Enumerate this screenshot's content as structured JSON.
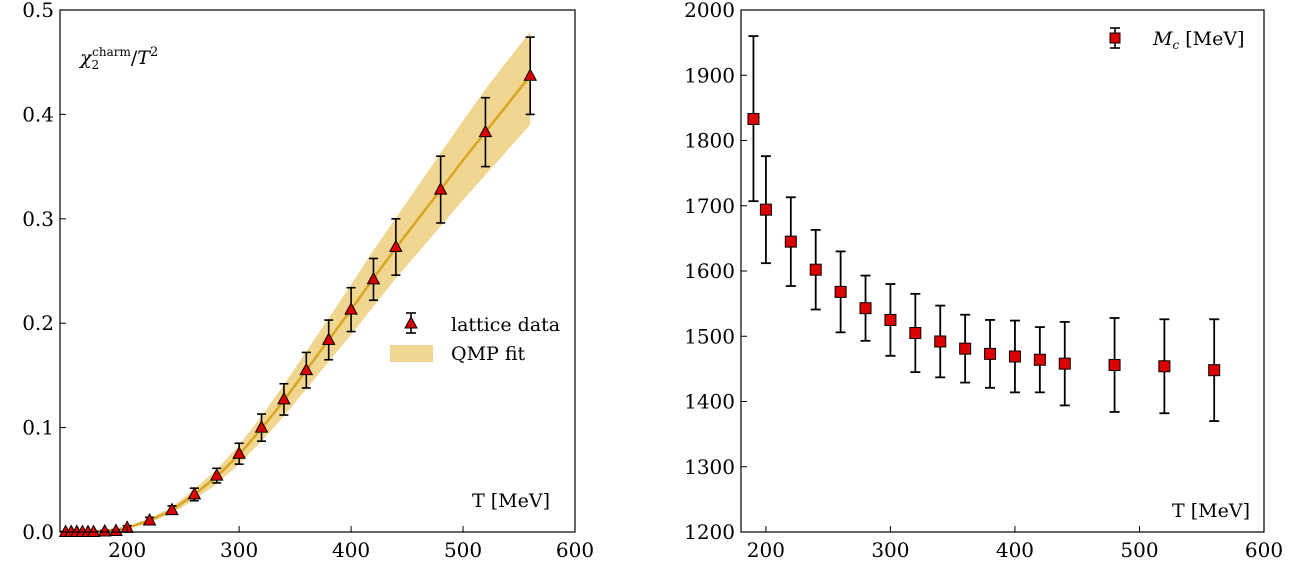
{
  "colors": {
    "marker_fill": "#dd0000",
    "marker_edge": "#000000",
    "errorbar": "#000000",
    "fit_line": "#daa520",
    "fit_band": "#f0d690"
  },
  "chart_data": [
    {
      "type": "scatter",
      "title": "",
      "annotation": "χ₂^charm/T²",
      "annotation_parts": {
        "chi": "χ",
        "sub": "2",
        "sup": "charm",
        "rest": "/",
        "T": "T",
        "Tsup": "2"
      },
      "xlabel": "T [MeV]",
      "xlim": [
        140,
        600
      ],
      "ylim": [
        0.0,
        0.5
      ],
      "xticks": [
        200,
        300,
        400,
        500,
        600
      ],
      "yticks": [
        0.0,
        0.1,
        0.2,
        0.3,
        0.4,
        0.5
      ],
      "xtick_labels": [
        "200",
        "300",
        "400",
        "500",
        "600"
      ],
      "ytick_labels": [
        "0.0",
        "0.1",
        "0.2",
        "0.3",
        "0.4",
        "0.5"
      ],
      "legend_position": "center-right",
      "legend": [
        {
          "label": "lattice data",
          "marker": "triangle"
        },
        {
          "label": "QMP fit",
          "marker": "band"
        }
      ],
      "series": [
        {
          "name": "lattice data",
          "marker": "triangle",
          "x": [
            145,
            150,
            155,
            160,
            165,
            170,
            180,
            190,
            200,
            220,
            240,
            260,
            280,
            300,
            320,
            340,
            360,
            380,
            400,
            420,
            440,
            480,
            520,
            560
          ],
          "y": [
            0.0,
            0.0,
            0.0,
            0.0,
            0.0,
            0.0,
            0.0005,
            0.001,
            0.004,
            0.011,
            0.021,
            0.036,
            0.054,
            0.075,
            0.1,
            0.127,
            0.155,
            0.184,
            0.213,
            0.242,
            0.273,
            0.328,
            0.383,
            0.437
          ],
          "err": [
            0.0005,
            0.0005,
            0.0005,
            0.0005,
            0.0005,
            0.0005,
            0.001,
            0.001,
            0.002,
            0.003,
            0.004,
            0.006,
            0.007,
            0.01,
            0.013,
            0.015,
            0.017,
            0.019,
            0.021,
            0.02,
            0.027,
            0.032,
            0.033,
            0.037
          ]
        },
        {
          "name": "QMP fit",
          "type": "line_band",
          "x": [
            140,
            160,
            180,
            200,
            220,
            240,
            260,
            280,
            300,
            320,
            340,
            360,
            380,
            400,
            420,
            440,
            460,
            480,
            500,
            520,
            540,
            560
          ],
          "y": [
            0.0,
            0.0,
            0.001,
            0.004,
            0.011,
            0.021,
            0.036,
            0.053,
            0.074,
            0.099,
            0.126,
            0.155,
            0.184,
            0.213,
            0.243,
            0.272,
            0.3,
            0.328,
            0.356,
            0.383,
            0.41,
            0.437
          ],
          "lower": [
            0.0,
            0.0,
            0.0005,
            0.003,
            0.009,
            0.018,
            0.031,
            0.046,
            0.065,
            0.087,
            0.111,
            0.137,
            0.163,
            0.189,
            0.216,
            0.243,
            0.268,
            0.293,
            0.318,
            0.342,
            0.366,
            0.39
          ],
          "upper": [
            0.0,
            0.0,
            0.0015,
            0.005,
            0.013,
            0.024,
            0.041,
            0.06,
            0.083,
            0.111,
            0.141,
            0.173,
            0.205,
            0.237,
            0.27,
            0.301,
            0.332,
            0.363,
            0.394,
            0.424,
            0.452,
            0.479
          ]
        }
      ]
    },
    {
      "type": "scatter",
      "title": "",
      "xlabel": "T [MeV]",
      "xlim": [
        180,
        600
      ],
      "ylim": [
        1200,
        2000
      ],
      "xticks": [
        200,
        300,
        400,
        500,
        600
      ],
      "yticks": [
        1200,
        1300,
        1400,
        1500,
        1600,
        1700,
        1800,
        1900,
        2000
      ],
      "xtick_labels": [
        "200",
        "300",
        "400",
        "500",
        "600"
      ],
      "ytick_labels": [
        "1200",
        "1300",
        "1400",
        "1500",
        "1600",
        "1700",
        "1800",
        "1900",
        "2000"
      ],
      "legend_position": "top-right",
      "legend": [
        {
          "label": "M_c [MeV]",
          "marker": "square"
        }
      ],
      "series": [
        {
          "name": "M_c [MeV]",
          "marker": "square",
          "x": [
            190,
            200,
            220,
            240,
            260,
            280,
            300,
            320,
            340,
            360,
            380,
            400,
            420,
            440,
            480,
            520,
            560
          ],
          "y": [
            1833,
            1694,
            1645,
            1602,
            1568,
            1543,
            1525,
            1505,
            1492,
            1481,
            1473,
            1469,
            1464,
            1458,
            1456,
            1454,
            1448
          ],
          "err_low": [
            126,
            82,
            68,
            61,
            62,
            50,
            55,
            60,
            55,
            52,
            52,
            55,
            50,
            64,
            72,
            72,
            78
          ],
          "err_high": [
            127,
            82,
            68,
            61,
            62,
            50,
            55,
            60,
            55,
            52,
            52,
            55,
            50,
            64,
            72,
            72,
            78
          ]
        }
      ]
    }
  ]
}
